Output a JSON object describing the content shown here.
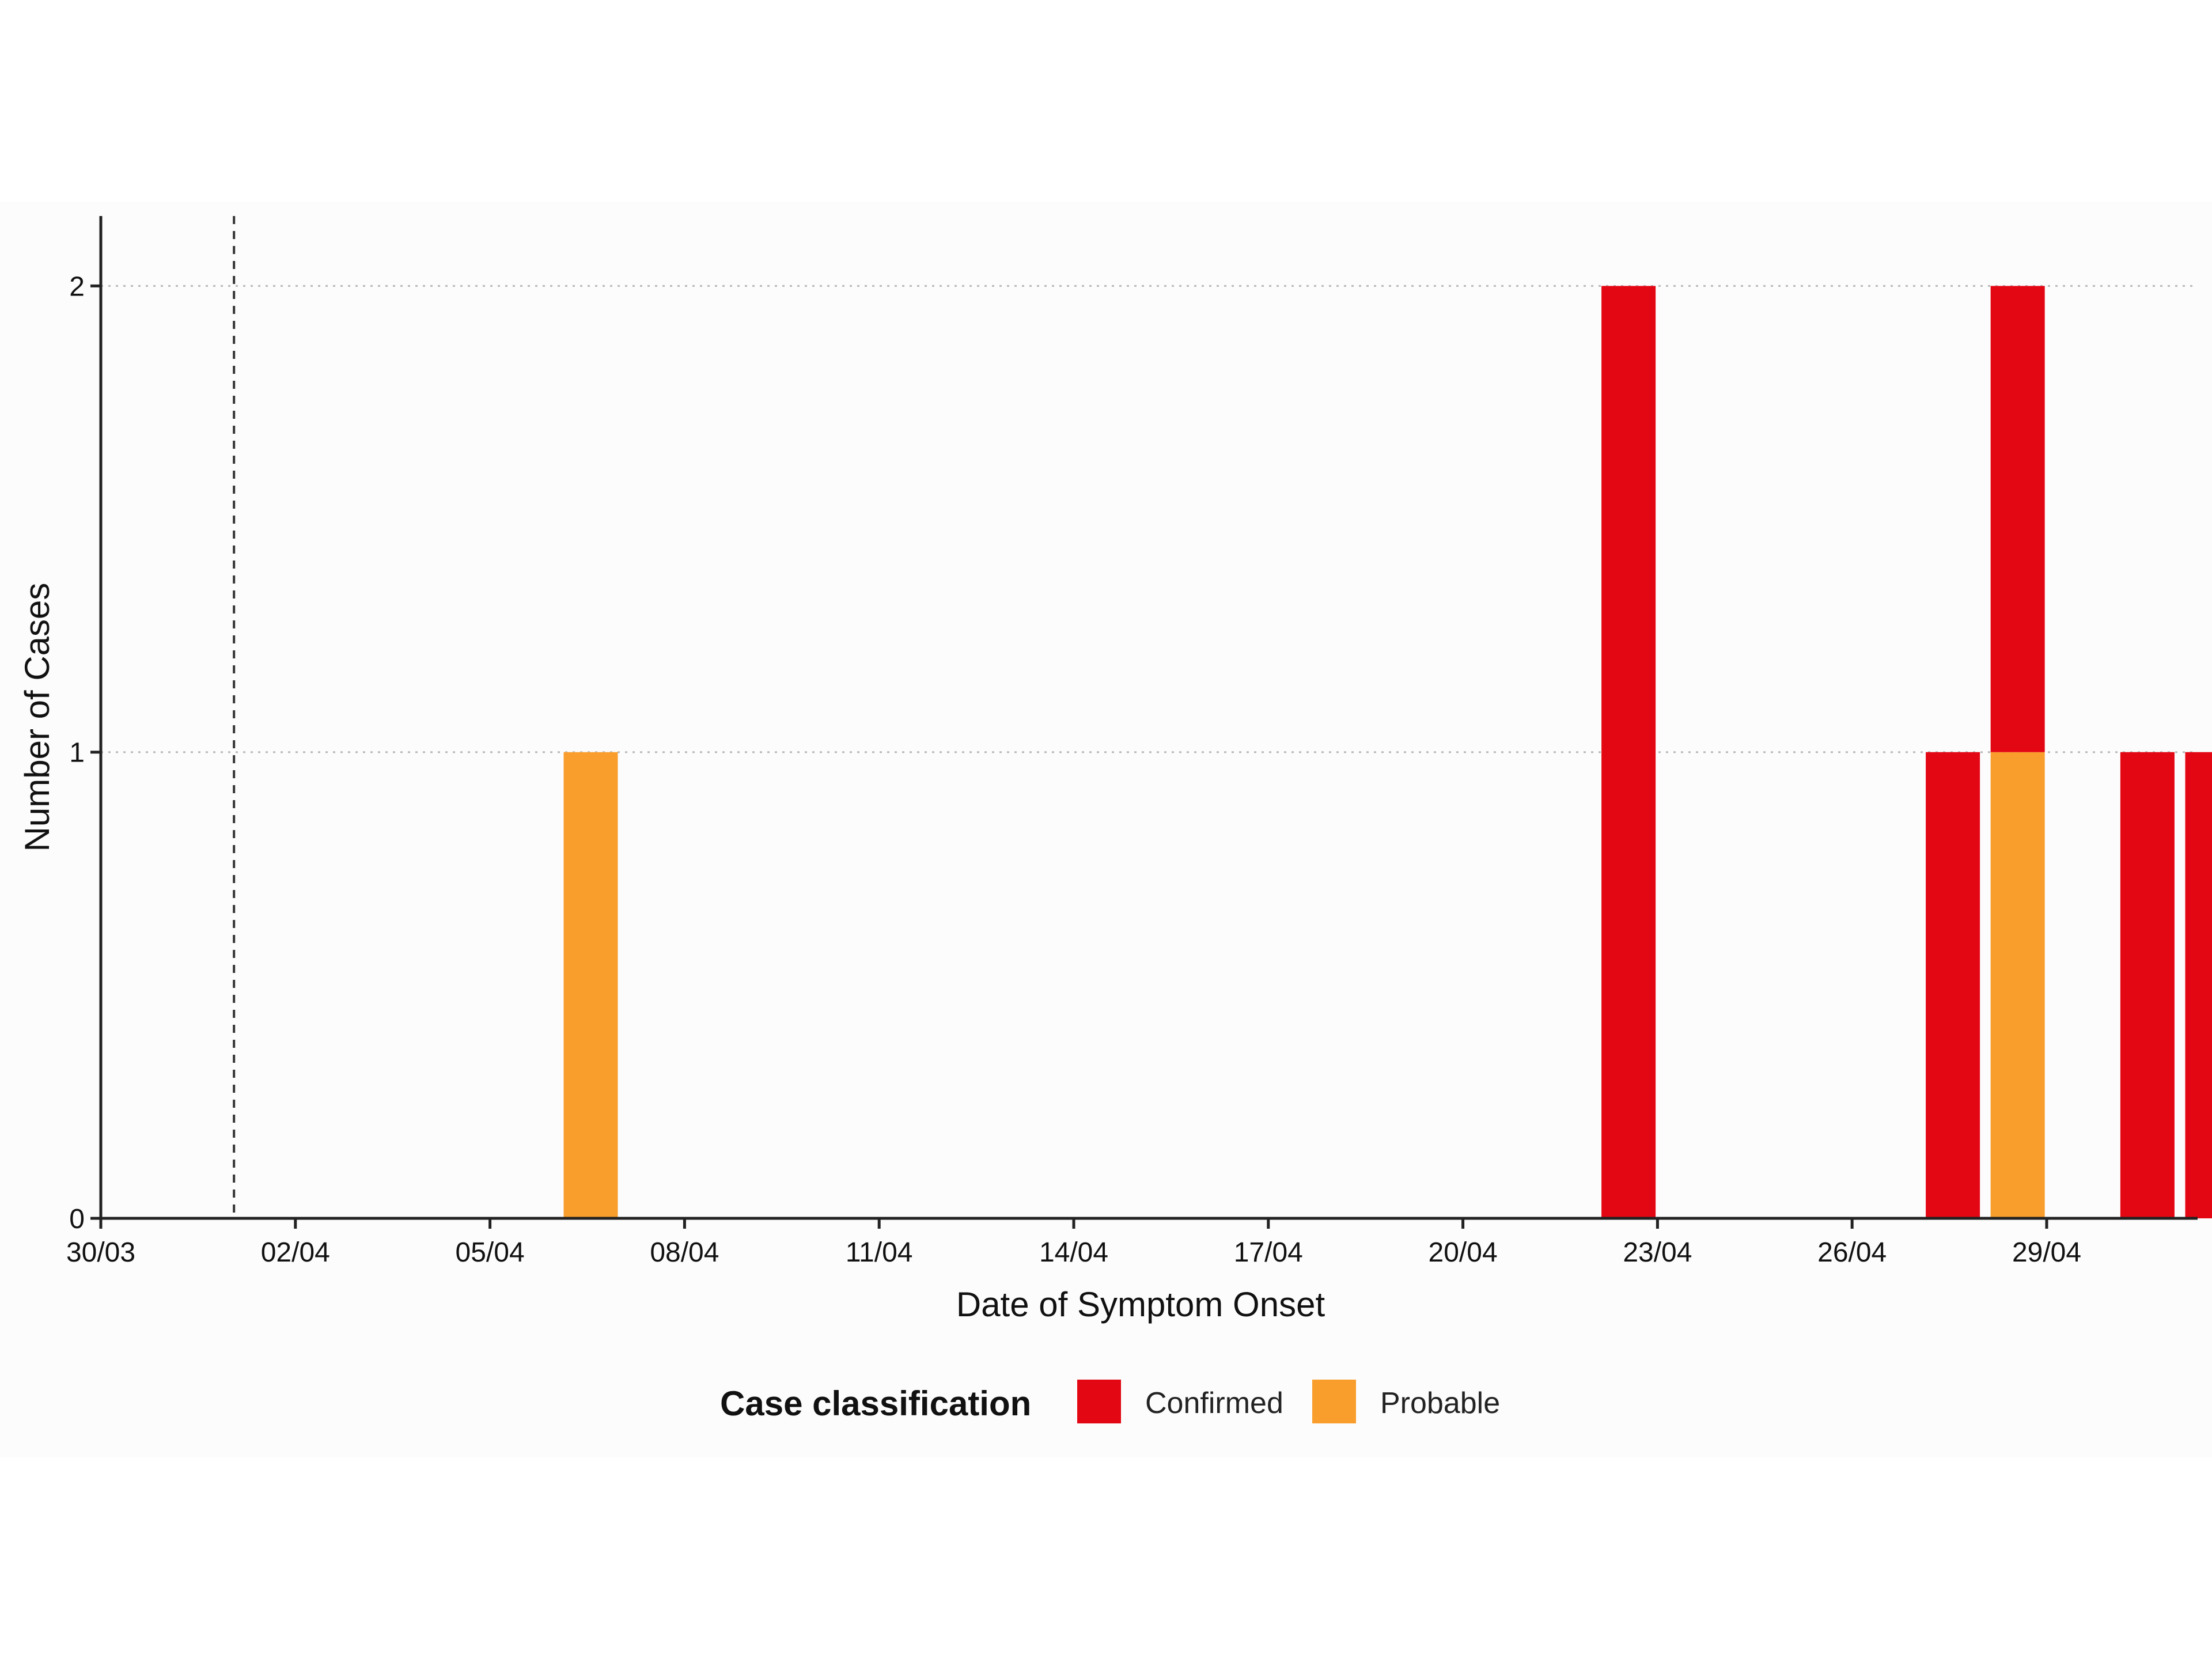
{
  "chart_data": {
    "type": "bar",
    "stacked": true,
    "xlabel": "Date of Symptom Onset",
    "ylabel": "Number of Cases",
    "x_tick_labels": [
      "30/03",
      "02/04",
      "05/04",
      "08/04",
      "11/04",
      "14/04",
      "17/04",
      "20/04",
      "23/04",
      "26/04",
      "29/04"
    ],
    "y_ticks": [
      0,
      1,
      2
    ],
    "ylim": [
      0,
      2.15
    ],
    "dates": [
      "30/03",
      "31/03",
      "01/04",
      "02/04",
      "03/04",
      "04/04",
      "05/04",
      "06/04",
      "07/04",
      "08/04",
      "09/04",
      "10/04",
      "11/04",
      "12/04",
      "13/04",
      "14/04",
      "15/04",
      "16/04",
      "17/04",
      "18/04",
      "19/04",
      "20/04",
      "21/04",
      "22/04",
      "23/04",
      "24/04",
      "25/04",
      "26/04",
      "27/04",
      "28/04",
      "29/04",
      "30/04",
      "01/05"
    ],
    "series": [
      {
        "name": "Probable",
        "color": "#F99D2C",
        "values": [
          0,
          0,
          0,
          0,
          0,
          0,
          0,
          1,
          0,
          0,
          0,
          0,
          0,
          0,
          0,
          0,
          0,
          0,
          0,
          0,
          0,
          0,
          0,
          0,
          0,
          0,
          0,
          0,
          0,
          1,
          0,
          0,
          0
        ]
      },
      {
        "name": "Confirmed",
        "color": "#E30613",
        "values": [
          0,
          0,
          0,
          0,
          0,
          0,
          0,
          0,
          0,
          0,
          0,
          0,
          0,
          0,
          0,
          0,
          0,
          0,
          0,
          0,
          0,
          0,
          0,
          2,
          0,
          0,
          0,
          0,
          1,
          1,
          0,
          1,
          1
        ]
      }
    ],
    "reference_line": {
      "date": "01/04",
      "style": "dashed"
    },
    "grid": {
      "horizontal": "dotted",
      "vertical": false
    },
    "legend": {
      "title": "Case classification",
      "position": "bottom",
      "items": [
        "Confirmed",
        "Probable"
      ]
    }
  }
}
